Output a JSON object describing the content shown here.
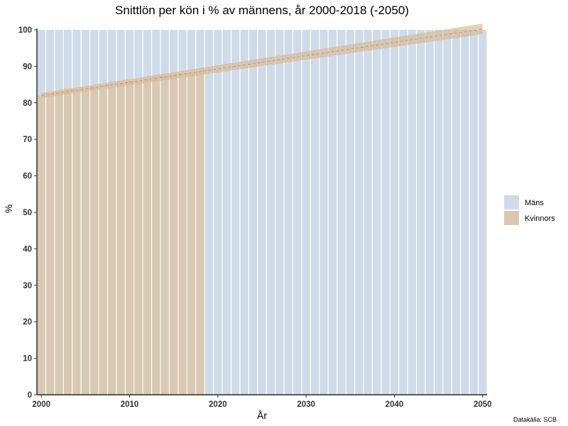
{
  "chart_data": {
    "type": "bar",
    "title": "Snittlön per kön i % av männens, år 2000-2018 (-2050)",
    "xlabel": "År",
    "ylabel": "%",
    "caption": "Datakälla: SCB",
    "xlim": [
      1999.5,
      2050.5
    ],
    "ylim": [
      0,
      100
    ],
    "x_ticks": [
      2000,
      2010,
      2020,
      2030,
      2040,
      2050
    ],
    "y_ticks": [
      0,
      10,
      20,
      30,
      40,
      50,
      60,
      70,
      80,
      90,
      100
    ],
    "grid": false,
    "legend_position": "right",
    "series": [
      {
        "name": "Mäns",
        "color": "#cfdbe9",
        "x": [
          2000,
          2001,
          2002,
          2003,
          2004,
          2005,
          2006,
          2007,
          2008,
          2009,
          2010,
          2011,
          2012,
          2013,
          2014,
          2015,
          2016,
          2017,
          2018,
          2019,
          2020,
          2021,
          2022,
          2023,
          2024,
          2025,
          2026,
          2027,
          2028,
          2029,
          2030,
          2031,
          2032,
          2033,
          2034,
          2035,
          2036,
          2037,
          2038,
          2039,
          2040,
          2041,
          2042,
          2043,
          2044,
          2045,
          2046,
          2047,
          2048,
          2049,
          2050
        ],
        "values": [
          100,
          100,
          100,
          100,
          100,
          100,
          100,
          100,
          100,
          100,
          100,
          100,
          100,
          100,
          100,
          100,
          100,
          100,
          100,
          100,
          100,
          100,
          100,
          100,
          100,
          100,
          100,
          100,
          100,
          100,
          100,
          100,
          100,
          100,
          100,
          100,
          100,
          100,
          100,
          100,
          100,
          100,
          100,
          100,
          100,
          100,
          100,
          100,
          100,
          100,
          100
        ]
      },
      {
        "name": "Kvinnors",
        "color": "#d9c9b2",
        "x": [
          2000,
          2001,
          2002,
          2003,
          2004,
          2005,
          2006,
          2007,
          2008,
          2009,
          2010,
          2011,
          2012,
          2013,
          2014,
          2015,
          2016,
          2017,
          2018
        ],
        "values": [
          82.0,
          82.5,
          83.0,
          84.0,
          83.5,
          83.3,
          84.2,
          83.8,
          84.3,
          85.2,
          85.9,
          86.0,
          86.5,
          87.0,
          87.5,
          87.8,
          88.0,
          88.3,
          88.7
        ]
      }
    ],
    "trend": {
      "x": [
        2000,
        2050
      ],
      "values": [
        82.0,
        100.2
      ],
      "ribbon_lower": [
        81.3,
        98.8
      ],
      "ribbon_upper": [
        82.7,
        101.7
      ],
      "line_color": "#c4957a",
      "ribbon_color": "#d9b992"
    }
  }
}
